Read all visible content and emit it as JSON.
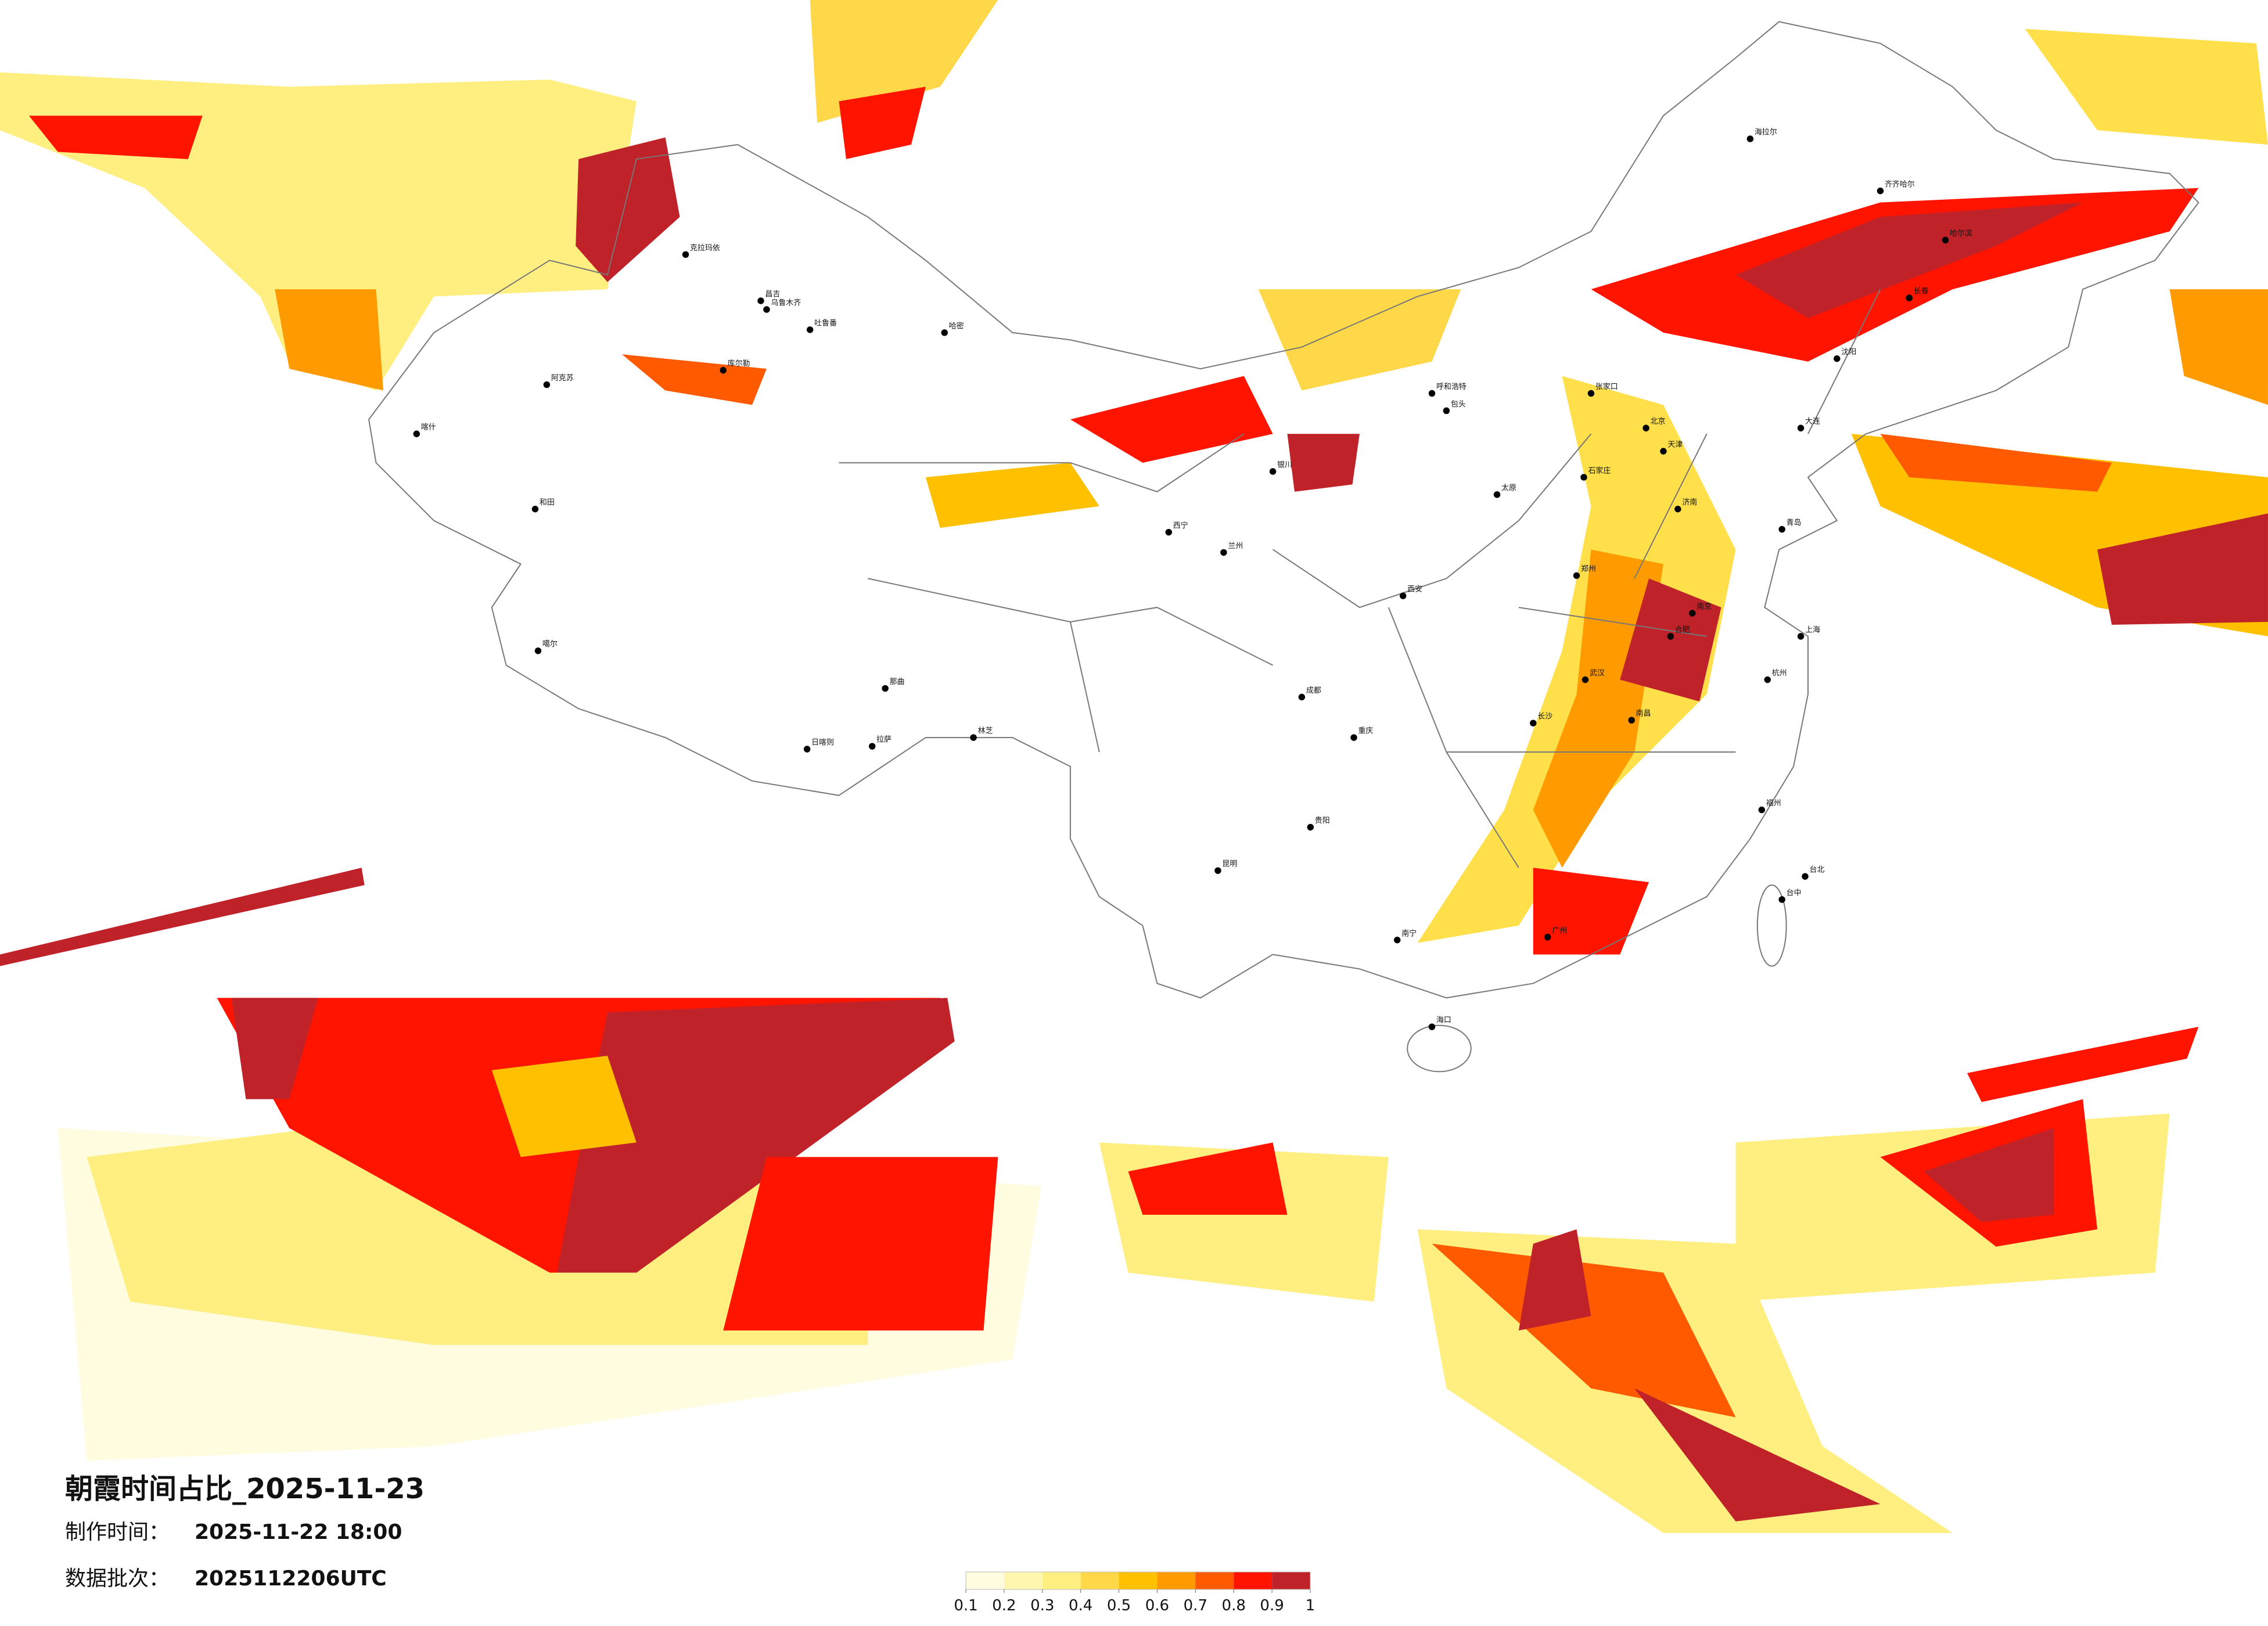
{
  "header": {
    "title": "朝霞时间占比_2025-11-23",
    "made_label": "制作时间：",
    "made_time": "2025-11-22 18:00",
    "batch_label": "数据批次：",
    "batch": "2025112206UTC"
  },
  "legend": {
    "colors": [
      "#fffce0",
      "#fff7b0",
      "#ffee80",
      "#ffd84a",
      "#ffc000",
      "#ff9a00",
      "#ff5a00",
      "#ff1400",
      "#c0222a"
    ],
    "ticks": [
      0.1,
      0.2,
      0.3,
      0.4,
      0.5,
      0.6,
      0.7,
      0.8,
      0.9,
      1
    ]
  },
  "cities": [
    "克拉玛依",
    "昌吉",
    "乌鲁木齐",
    "吐鲁番",
    "哈密",
    "库尔勒",
    "阿克苏",
    "喀什",
    "和田",
    "噶尔",
    "日喀则",
    "拉萨",
    "林芝",
    "那曲",
    "西宁",
    "兰州",
    "银川",
    "呼和浩特",
    "包头",
    "北京",
    "天津",
    "张家口",
    "石家庄",
    "太原",
    "济南",
    "青岛",
    "郑州",
    "西安",
    "武汉",
    "南京",
    "上海",
    "杭州",
    "合肥",
    "长沙",
    "南昌",
    "福州",
    "重庆",
    "成都",
    "贵阳",
    "昆明",
    "南宁",
    "广州",
    "海口",
    "台北",
    "台中",
    "沈阳",
    "长春",
    "哈尔滨",
    "海拉尔",
    "齐齐哈尔",
    "大连"
  ]
}
